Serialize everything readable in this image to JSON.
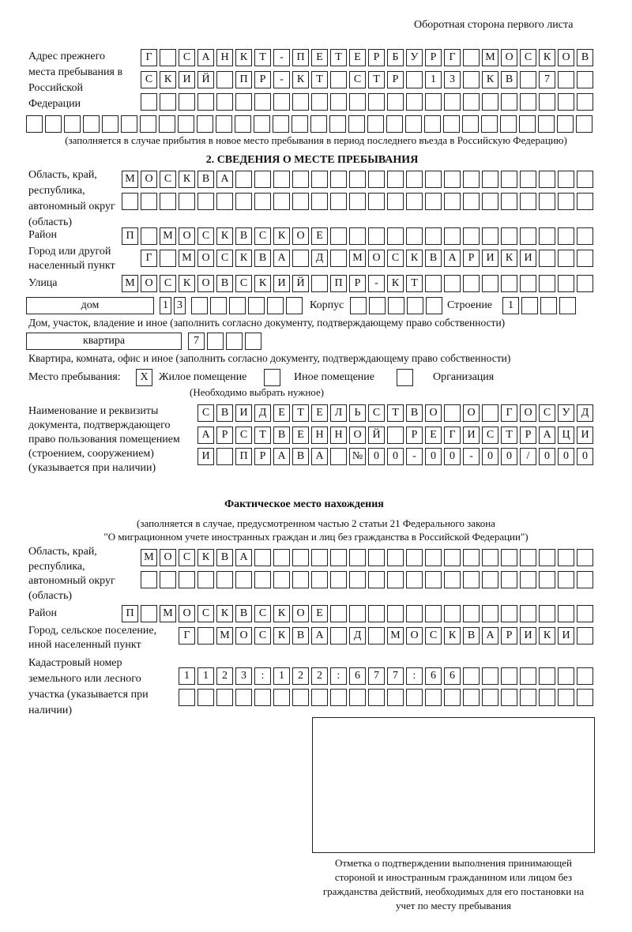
{
  "header": "Оборотная сторона первого листа",
  "prev_address": {
    "label": "Адрес прежнего места пребывания в Российской Федерации",
    "rows": [
      [
        "Г",
        "",
        "С",
        "А",
        "Н",
        "К",
        "Т",
        "-",
        "П",
        "Е",
        "Т",
        "Е",
        "Р",
        "Б",
        "У",
        "Р",
        "Г",
        "",
        "М",
        "О",
        "С",
        "К",
        "О",
        "В"
      ],
      [
        "С",
        "К",
        "И",
        "Й",
        "",
        "П",
        "Р",
        "-",
        "К",
        "Т",
        "",
        "С",
        "Т",
        "Р",
        "",
        "1",
        "3",
        "",
        "К",
        "В",
        "",
        "7",
        "",
        ""
      ],
      [
        "",
        "",
        "",
        "",
        "",
        "",
        "",
        "",
        "",
        "",
        "",
        "",
        "",
        "",
        "",
        "",
        "",
        "",
        "",
        "",
        "",
        "",
        "",
        ""
      ],
      [
        "",
        "",
        "",
        "",
        "",
        "",
        "",
        "",
        "",
        "",
        "",
        "",
        "",
        "",
        "",
        "",
        "",
        "",
        "",
        "",
        "",
        "",
        "",
        "",
        "",
        "",
        "",
        "",
        "",
        ""
      ]
    ],
    "note": "(заполняется в случае прибытия в новое место пребывания в период последнего въезда в Российскую Федерацию)"
  },
  "section2": {
    "title": "2. СВЕДЕНИЯ О МЕСТЕ ПРЕБЫВАНИЯ",
    "region_label": "Область, край, республика, автономный округ (область)",
    "region_rows": [
      [
        "М",
        "О",
        "С",
        "К",
        "В",
        "А",
        "",
        "",
        "",
        "",
        "",
        "",
        "",
        "",
        "",
        "",
        "",
        "",
        "",
        "",
        "",
        "",
        "",
        "",
        ""
      ],
      [
        "",
        "",
        "",
        "",
        "",
        "",
        "",
        "",
        "",
        "",
        "",
        "",
        "",
        "",
        "",
        "",
        "",
        "",
        "",
        "",
        "",
        "",
        "",
        "",
        ""
      ]
    ],
    "district_label": "Район",
    "district_row": [
      "П",
      "",
      "М",
      "О",
      "С",
      "К",
      "В",
      "С",
      "К",
      "О",
      "Е",
      "",
      "",
      "",
      "",
      "",
      "",
      "",
      "",
      "",
      "",
      "",
      "",
      "",
      ""
    ],
    "city_label": "Город или другой населенный пункт",
    "city_row": [
      "Г",
      "",
      "М",
      "О",
      "С",
      "К",
      "В",
      "А",
      "",
      "Д",
      "",
      "М",
      "О",
      "С",
      "К",
      "В",
      "А",
      "Р",
      "И",
      "К",
      "И",
      "",
      "",
      ""
    ],
    "street_label": "Улица",
    "street_row": [
      "М",
      "О",
      "С",
      "К",
      "О",
      "В",
      "С",
      "К",
      "И",
      "Й",
      "",
      "П",
      "Р",
      "-",
      "К",
      "Т",
      "",
      "",
      "",
      "",
      "",
      "",
      "",
      "",
      ""
    ],
    "house_type": "дом",
    "house_digits": [
      "1",
      "3"
    ],
    "house_cells": [
      "",
      "",
      "",
      "",
      "",
      ""
    ],
    "korpus_label": "Корпус",
    "korpus_cells": [
      "",
      "",
      "",
      "",
      ""
    ],
    "building_label": "Строение",
    "building_cells": [
      "1",
      "",
      "",
      ""
    ],
    "house_note": "Дом, участок, владение и иное (заполнить согласно документу, подтверждающему право собственности)",
    "apt_type": "квартира",
    "apt_cells": [
      "7",
      "",
      "",
      ""
    ],
    "apt_note": "Квартира, комната, офис и иное (заполнить согласно документу, подтверждающему право собственности)",
    "stay_label": "Место пребывания:",
    "options": [
      {
        "mark": "X",
        "label": "Жилое помещение"
      },
      {
        "mark": "",
        "label": "Иное помещение"
      },
      {
        "mark": "",
        "label": "Организация"
      }
    ],
    "choose_note": "(Необходимо выбрать нужное)",
    "doc_label": "Наименование и реквизиты документа, подтверждающего право пользования помещением (строением, сооружением) (указывается при наличии)",
    "doc_rows": [
      [
        "С",
        "В",
        "И",
        "Д",
        "Е",
        "Т",
        "Е",
        "Л",
        "Ь",
        "С",
        "Т",
        "В",
        "О",
        "",
        "О",
        "",
        "Г",
        "О",
        "С",
        "У",
        "Д"
      ],
      [
        "А",
        "Р",
        "С",
        "Т",
        "В",
        "Е",
        "Н",
        "Н",
        "О",
        "Й",
        "",
        "Р",
        "Е",
        "Г",
        "И",
        "С",
        "Т",
        "Р",
        "А",
        "Ц",
        "И"
      ],
      [
        "И",
        "",
        "П",
        "Р",
        "А",
        "В",
        "А",
        "",
        "№",
        "0",
        "0",
        "-",
        "0",
        "0",
        "-",
        "0",
        "0",
        "/",
        "0",
        "0",
        "0"
      ]
    ]
  },
  "actual": {
    "title": "Фактическое место нахождения",
    "note1": "(заполняется в случае, предусмотренном частью 2 статьи 21 Федерального закона",
    "note2": "\"О миграционном учете иностранных граждан и лиц без гражданства в Российской Федерации\")",
    "region_label": "Область, край, республика, автономный округ (область)",
    "region_rows": [
      [
        "М",
        "О",
        "С",
        "К",
        "В",
        "А",
        "",
        "",
        "",
        "",
        "",
        "",
        "",
        "",
        "",
        "",
        "",
        "",
        "",
        "",
        "",
        "",
        "",
        ""
      ],
      [
        "",
        "",
        "",
        "",
        "",
        "",
        "",
        "",
        "",
        "",
        "",
        "",
        "",
        "",
        "",
        "",
        "",
        "",
        "",
        "",
        "",
        "",
        "",
        ""
      ]
    ],
    "district_label": "Район",
    "district_row": [
      "П",
      "",
      "М",
      "О",
      "С",
      "К",
      "В",
      "С",
      "К",
      "О",
      "Е",
      "",
      "",
      "",
      "",
      "",
      "",
      "",
      "",
      "",
      "",
      "",
      "",
      "",
      ""
    ],
    "city_label": "Город, сельское поселение, иной населенный пункт",
    "city_row": [
      "Г",
      "",
      "М",
      "О",
      "С",
      "К",
      "В",
      "А",
      "",
      "Д",
      "",
      "М",
      "О",
      "С",
      "К",
      "В",
      "А",
      "Р",
      "И",
      "К",
      "И",
      ""
    ],
    "cadastre_label": "Кадастровый номер земельного или лесного участка (указывается при наличии)",
    "cadastre_rows": [
      [
        "1",
        "1",
        "2",
        "3",
        ":",
        "1",
        "2",
        "2",
        ":",
        "6",
        "7",
        "7",
        ":",
        "6",
        "6",
        "",
        "",
        "",
        "",
        "",
        "",
        ""
      ],
      [
        "",
        "",
        "",
        "",
        "",
        "",
        "",
        "",
        "",
        "",
        "",
        "",
        "",
        "",
        "",
        "",
        "",
        "",
        "",
        "",
        "",
        ""
      ]
    ]
  },
  "confirmation_caption": "Отметка о подтверждении выполнения принимающей стороной и иностранным гражданином или лицом без гражданства действий, необходимых для его постановки на учет по месту пребывания"
}
